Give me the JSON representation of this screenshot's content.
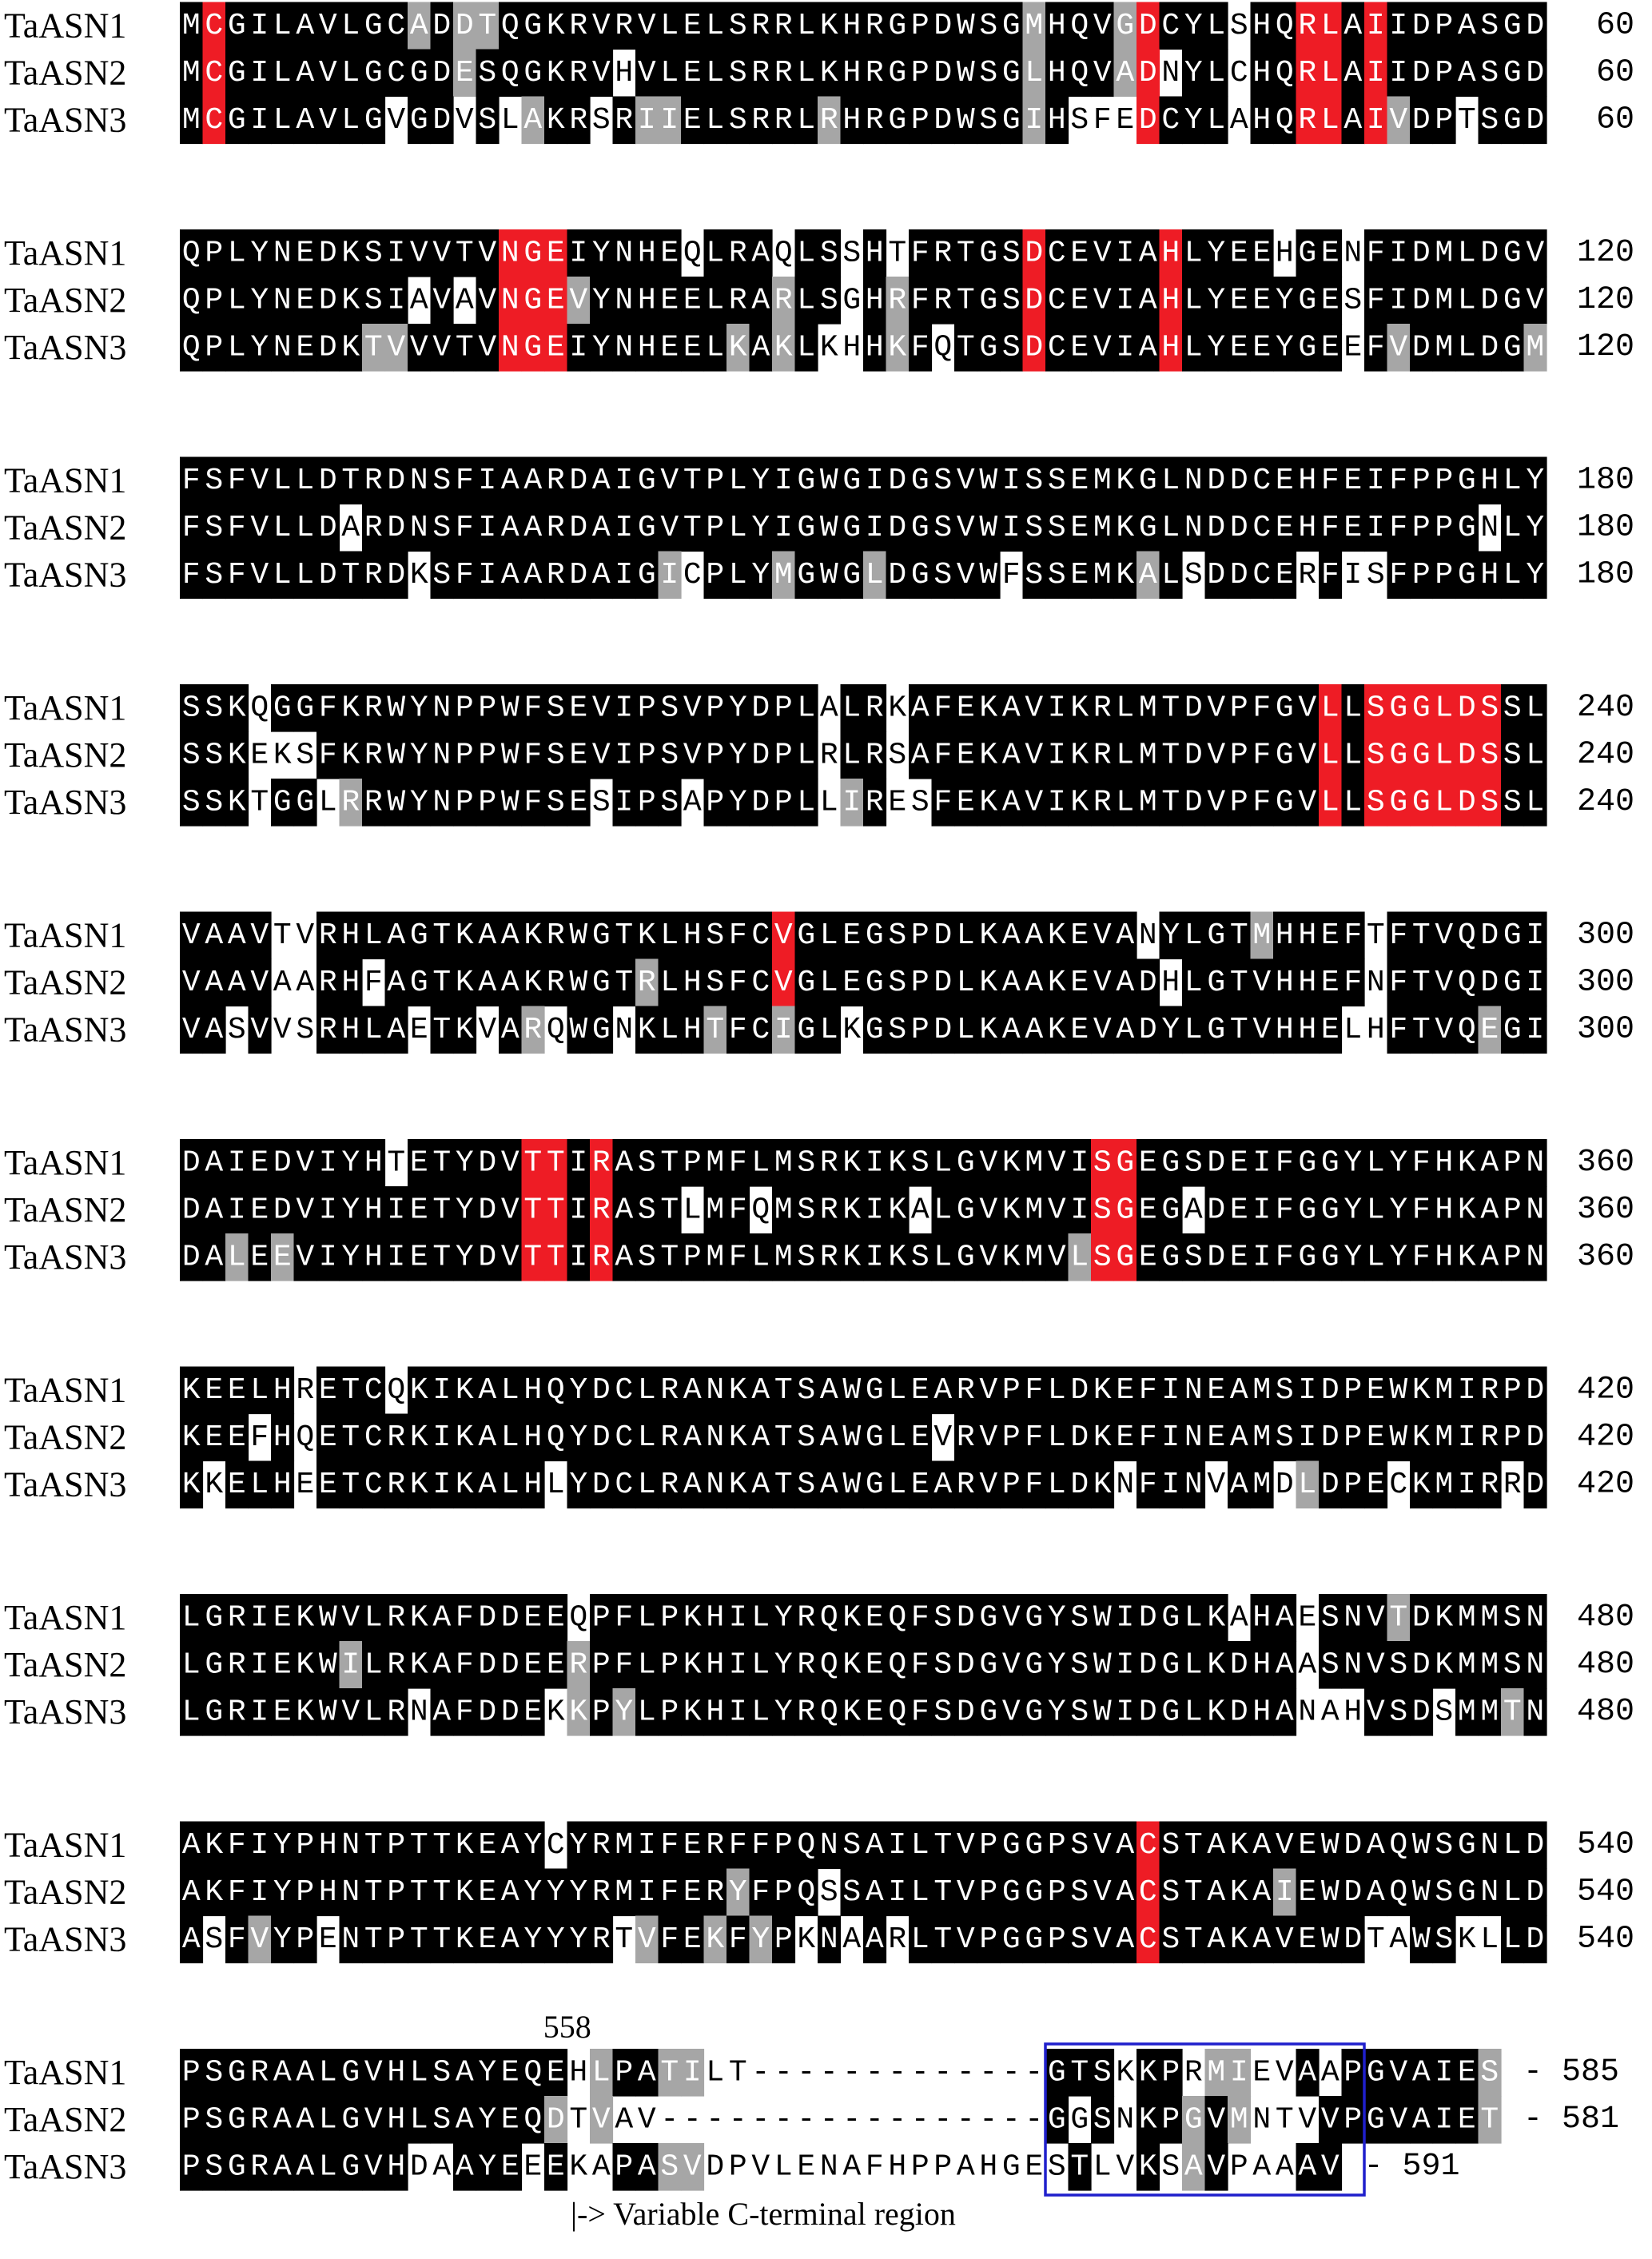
{
  "colors": {
    "identical": "#000000",
    "similar": "#a6a6a6",
    "highlight": "#ee1c25",
    "box": "#1f1fcc"
  },
  "blocks": [
    {
      "rows": [
        {
          "name": "TaASN1",
          "sequence": "MCGILAVLGCADDTQGKRVRVLELSRRLKHRGPDWSGMHQVGDCYLSHQRLAIIDPASGD",
          "end": 60
        },
        {
          "name": "TaASN2",
          "sequence": "MCGILAVLGCGDESQGKRVHVLELSRRLKHRGPDWSGLHQVADNYLCHQRLAIIDPASGD",
          "end": 60
        },
        {
          "name": "TaASN3",
          "sequence": "MCGILAVLGVGDVSLAKRSRIIELSRRLRHRGPDWSGIHSFEDCYLAHQRLAIVDPTSGD",
          "end": 60
        }
      ]
    },
    {
      "rows": [
        {
          "name": "TaASN1",
          "sequence": "QPLYNEDKSIVVTVNGEIYNHEQLRAQLSSHTFRTGSDCEVIAHLYEEHGENFIDMLDGV",
          "end": 120
        },
        {
          "name": "TaASN2",
          "sequence": "QPLYNEDKSIAVAVNGEVYNHEELRARLSGHRFRTGSDCEVIAHLYEEYGESFIDMLDGV",
          "end": 120
        },
        {
          "name": "TaASN3",
          "sequence": "QPLYNEDKTVVVTVNGEIYNHEELKAKLKHHKFQTGSDCEVIAHLYEEYGEEFVDMLDGM",
          "end": 120
        }
      ]
    },
    {
      "rows": [
        {
          "name": "TaASN1",
          "sequence": "FSFVLLDTRDNSFIAARDAIGVTPLYIGWGIDGSVWISSEMKGLNDDCEHFEIFPPGHLY",
          "end": 180
        },
        {
          "name": "TaASN2",
          "sequence": "FSFVLLDARDNSFIAARDAIGVTPLYIGWGIDGSVWISSEMKGLNDDCEHFEIFPPGNLY",
          "end": 180
        },
        {
          "name": "TaASN3",
          "sequence": "FSFVLLDTRDKSFIAARDAIGICPLYMGWGLDGSVWFSSEMKALSDDCERFISFPPGHLY",
          "end": 180
        }
      ]
    },
    {
      "rows": [
        {
          "name": "TaASN1",
          "sequence": "SSKQGGFKRWYNPPWFSEVIPSVPYDPLALRKAFEKAVIKRLMTDVPFGVLLSGGLDSSL",
          "end": 240
        },
        {
          "name": "TaASN2",
          "sequence": "SSKEKSFKRWYNPPWFSEVIPSVPYDPLRLRSAFEKAVIKRLMTDVPFGVLLSGGLDSSL",
          "end": 240
        },
        {
          "name": "TaASN3",
          "sequence": "SSKTGGLRRWYNPPWFSESIPSAPYDPLLIRESFEKAVIKRLMTDVPFGVLLSGGLDSSL",
          "end": 240
        }
      ]
    },
    {
      "rows": [
        {
          "name": "TaASN1",
          "sequence": "VAAVTVRHLAGTKAAKRWGTKLHSFCVGLEGSPDLKAAKEVANYLGTMHHEFTFTVQDGI",
          "end": 300
        },
        {
          "name": "TaASN2",
          "sequence": "VAAVAARHFAGTKAAKRWGTRLHSFCVGLEGSPDLKAAKEVADHLGTVHHEFNFTVQDGI",
          "end": 300
        },
        {
          "name": "TaASN3",
          "sequence": "VASVVSRHLAETKVARQWGNKLHTFCIGLKGSPDLKAAKEVADYLGTVHHELHFTVQEGI",
          "end": 300
        }
      ]
    },
    {
      "rows": [
        {
          "name": "TaASN1",
          "sequence": "DAIEDVIYHTETYDVTTIRASTPMFLMSRKIKSLGVKMVISGEGSDEIFGGYLYFHKAPN",
          "end": 360
        },
        {
          "name": "TaASN2",
          "sequence": "DAIEDVIYHIETYDVTTIRASTLMFQMSRKIKALGVKMVISGEGADEIFGGYLYFHKAPN",
          "end": 360
        },
        {
          "name": "TaASN3",
          "sequence": "DALEEVIYHIETYDVTTIRASTPMFLMSRKIKSLGVKMVLSGEGSDEIFGGYLYFHKAPN",
          "end": 360
        }
      ]
    },
    {
      "rows": [
        {
          "name": "TaASN1",
          "sequence": "KEELHRETCQKIKALHQYDCLRANKATSAWGLEARVPFLDKEFINEAMSIDPEWKMIRPD",
          "end": 420
        },
        {
          "name": "TaASN2",
          "sequence": "KEEFHQETCRKIKALHQYDCLRANKATSAWGLEVRVPFLDKEFINEAMSIDPEWKMIRPD",
          "end": 420
        },
        {
          "name": "TaASN3",
          "sequence": "KKELHEETCRKIKALHLYDCLRANKATSAWGLEARVPFLDKNFINVAMDLDPECKMIRRD",
          "end": 420
        }
      ]
    },
    {
      "rows": [
        {
          "name": "TaASN1",
          "sequence": "LGRIEKWVLRKAFDDEEQPFLPKHILYRQKEQFSDGVGYSWIDGLKAHAESNVTDKMMSN",
          "end": 480
        },
        {
          "name": "TaASN2",
          "sequence": "LGRIEKWILRKAFDDEERPFLPKHILYRQKEQFSDGVGYSWIDGLKDHAASNVSDKMMSN",
          "end": 480
        },
        {
          "name": "TaASN3",
          "sequence": "LGRIEKWVLRNAFDDEKKPYLPKHILYRQKEQFSDGVGYSWIDGLKDHANAHVSDSMMTN",
          "end": 480
        }
      ]
    },
    {
      "rows": [
        {
          "name": "TaASN1",
          "sequence": "AKFIYPHNTPTTKEAYCYRMIFERFFPQNSAILTVPGGPSVACSTAKAVEWDAQWSGNLD",
          "end": 540
        },
        {
          "name": "TaASN2",
          "sequence": "AKFIYPHNTPTTKEAYYYRMIFERYFPQSSAILTVPGGPSVACSTAKAIEWDAQWSGNLD",
          "end": 540
        },
        {
          "name": "TaASN3",
          "sequence": "ASFVYPENTPTTKEAYYYRTVFEKFYPKNAARLTVPGGPSVACSTAKAVEWDTAWSKLLD",
          "end": 540
        }
      ]
    },
    {
      "rows": [
        {
          "name": "TaASN1",
          "sequence": "PSGRAALGVHLSAYEQEHLPATILT-------------GTSKKPRMIEVAAPGVAIES",
          "end": "- 585"
        },
        {
          "name": "TaASN2",
          "sequence": "PSGRAALGVHLSAYEQDTVAV-----------------GGSNKPGVMNTVVPGVAIET",
          "end": "- 581"
        },
        {
          "name": "TaASN3",
          "sequence": "PSGRAALGVHDAAYEEEKAPASVDPVLENAFHPPAHGESTLVKSAVPAAAV",
          "end": "- 591"
        }
      ]
    }
  ],
  "position_marker": 558,
  "region_note": "|-> Variable C-terminal region"
}
